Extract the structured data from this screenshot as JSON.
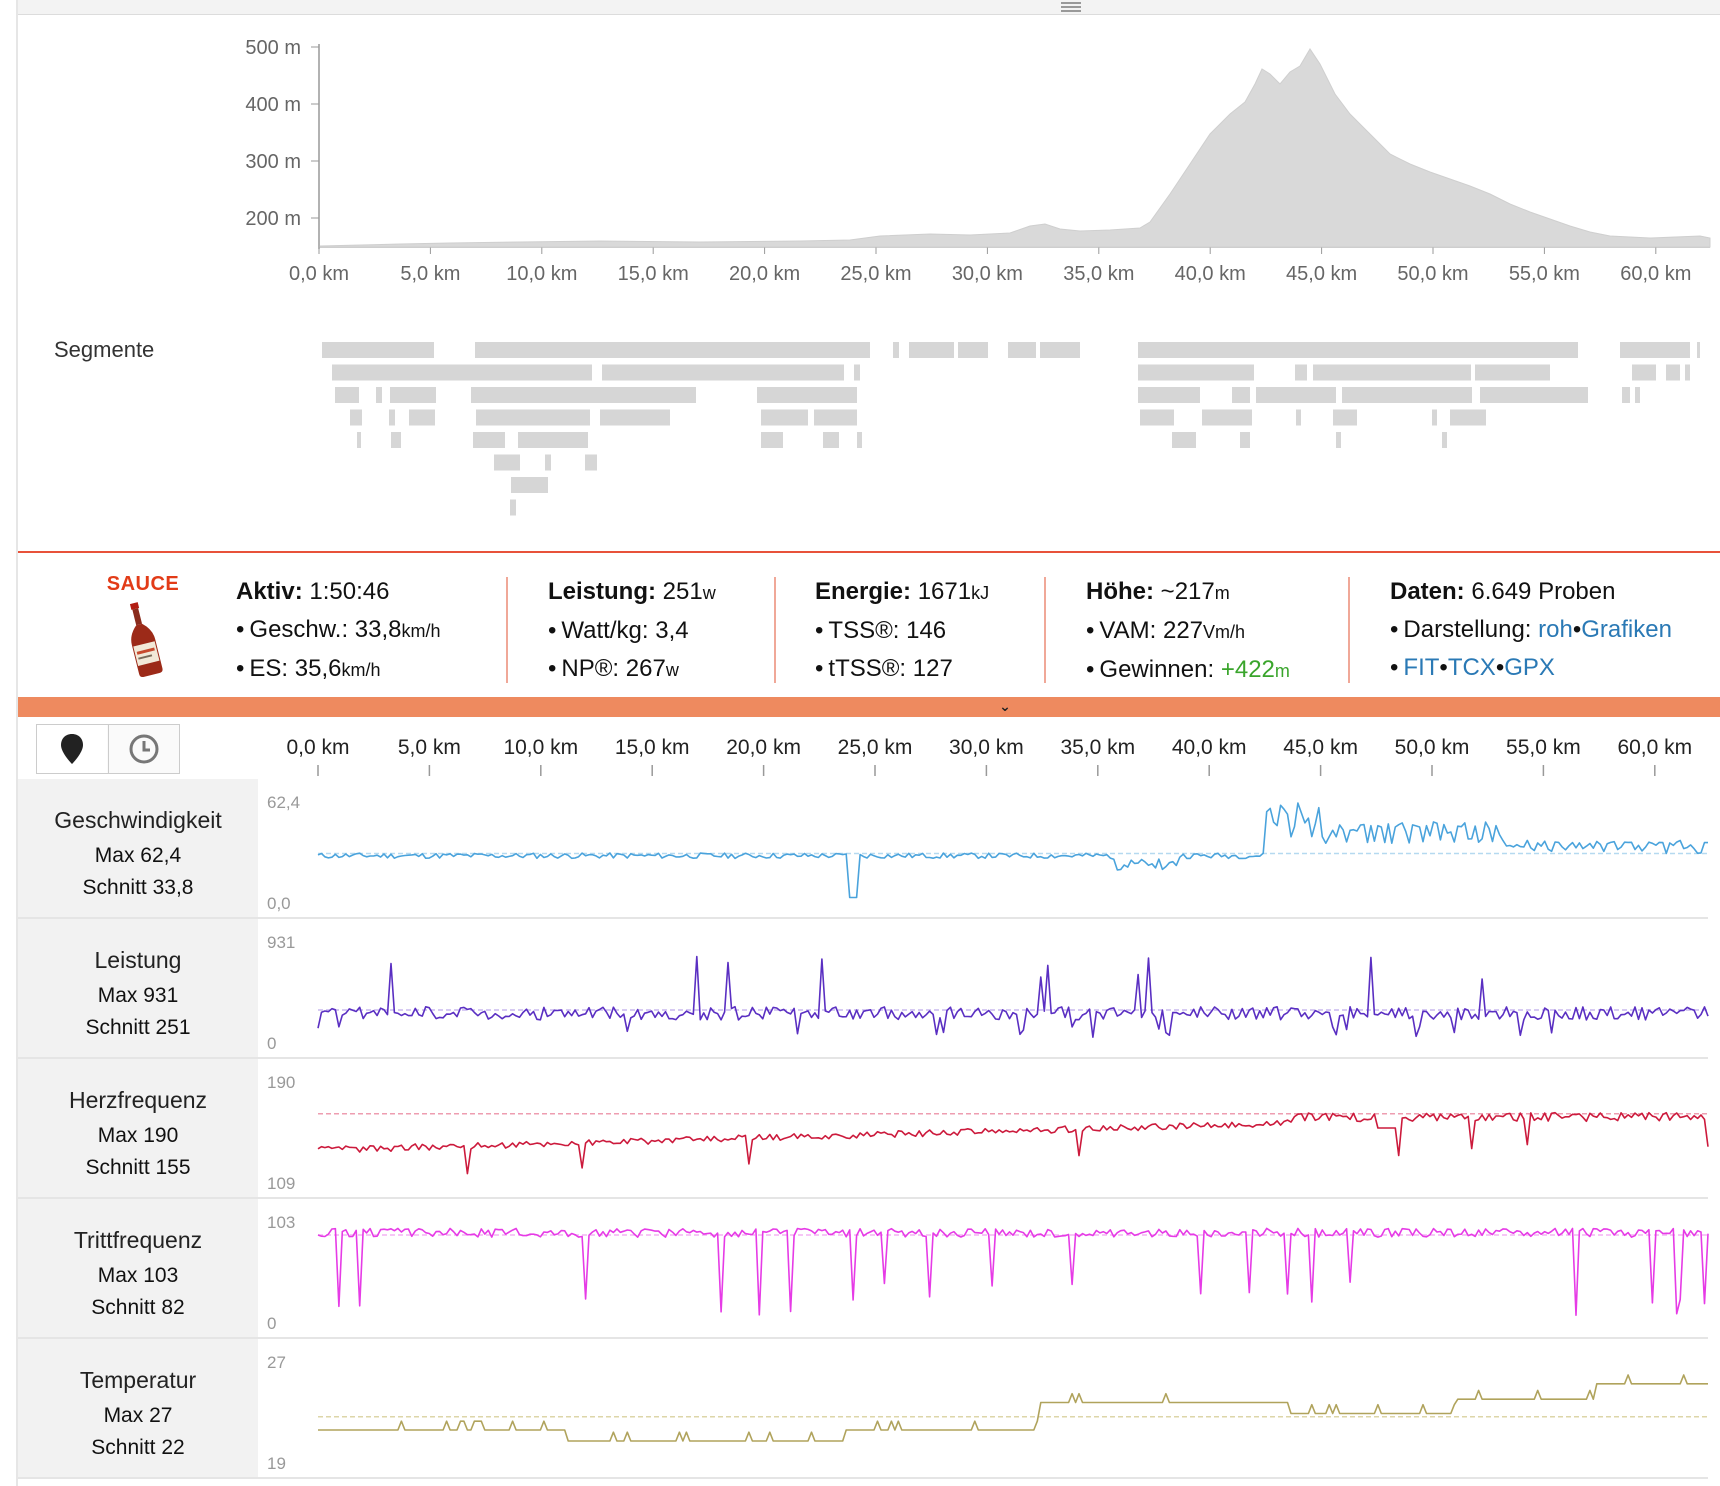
{
  "elevation": {
    "y_ticks": [
      "500 m",
      "400 m",
      "300 m",
      "200 m"
    ],
    "x_ticks": [
      "0,0 km",
      "5,0 km",
      "10,0 km",
      "15,0 km",
      "20,0 km",
      "25,0 km",
      "30,0 km",
      "35,0 km",
      "40,0 km",
      "45,0 km",
      "50,0 km",
      "55,0 km",
      "60,0 km"
    ],
    "fill_color": "#d9d9d9"
  },
  "segments": {
    "label": "Segmente"
  },
  "sauce": {
    "logo_text": "SAUCE",
    "active": {
      "label": "Aktiv:",
      "value": "1:50:46"
    },
    "speed": {
      "label": "Geschw.:",
      "value": "33,8",
      "unit": "km/h"
    },
    "es": {
      "label": "ES:",
      "value": "35,6",
      "unit": "km/h"
    },
    "power": {
      "label": "Leistung:",
      "value": "251",
      "unit": "w"
    },
    "wkg": {
      "label": "Watt/kg:",
      "value": "3,4"
    },
    "np": {
      "label": "NP®:",
      "value": "267",
      "unit": "w"
    },
    "energy": {
      "label": "Energie:",
      "value": "1671",
      "unit": "kJ"
    },
    "tss": {
      "label": "TSS®:",
      "value": "146"
    },
    "ttss": {
      "label": "tTSS®:",
      "value": "127"
    },
    "elevation": {
      "label": "Höhe:",
      "value": "~217",
      "unit": "m"
    },
    "vam": {
      "label": "VAM:",
      "value": "227",
      "unit": "Vm/h"
    },
    "gain": {
      "label": "Gewinnen:",
      "value": "+422",
      "unit": "m"
    },
    "data": {
      "label": "Daten:",
      "value": "6.649 Proben"
    },
    "display": {
      "label": "Darstellung:",
      "raw": "roh",
      "graphs": "Grafiken"
    },
    "exports": [
      "FIT",
      "TCX",
      "GPX"
    ],
    "accent": "#e8523a",
    "bar_color": "#ee8a5f"
  },
  "toolbar": {
    "location_icon": "map-pin-icon",
    "time_icon": "clock-icon"
  },
  "streams": [
    {
      "key": "speed",
      "name": "Geschwindigkeit",
      "max_label": "Max 62,4",
      "avg_label": "Schnitt 33,8",
      "axis_max": "62,4",
      "axis_min": "0,0",
      "color": "#4aa3dc",
      "avg_color": "#b5d9f0"
    },
    {
      "key": "power",
      "name": "Leistung",
      "max_label": "Max 931",
      "avg_label": "Schnitt 251",
      "axis_max": "931",
      "axis_min": "0",
      "color": "#5a2fc2",
      "avg_color": "#c9b9ee"
    },
    {
      "key": "hr",
      "name": "Herzfrequenz",
      "max_label": "Max 190",
      "avg_label": "Schnitt 155",
      "axis_max": "190",
      "axis_min": "109",
      "color": "#cc1a3c",
      "avg_color": "#ee9db0"
    },
    {
      "key": "cadence",
      "name": "Trittfrequenz",
      "max_label": "Max 103",
      "avg_label": "Schnitt 82",
      "axis_max": "103",
      "axis_min": "0",
      "color": "#e63be6",
      "avg_color": "#f3b3f3"
    },
    {
      "key": "temp",
      "name": "Temperatur",
      "max_label": "Max 27",
      "avg_label": "Schnitt 22",
      "axis_max": "27",
      "axis_min": "19",
      "color": "#b0a35c",
      "avg_color": "#ddd6a8"
    }
  ]
}
